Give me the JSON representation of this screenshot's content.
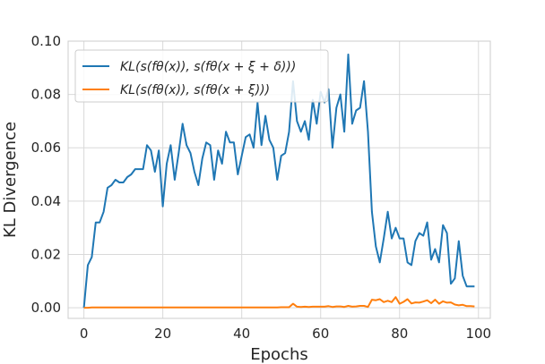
{
  "chart_data": {
    "type": "line",
    "title": "",
    "xlabel": "Epochs",
    "ylabel": "KL Divergence",
    "xlim": [
      -4,
      103
    ],
    "ylim": [
      -0.004,
      0.1
    ],
    "xticks": [
      0,
      20,
      40,
      60,
      80,
      100
    ],
    "xtick_labels": [
      "0",
      "20",
      "40",
      "60",
      "80",
      "100"
    ],
    "yticks": [
      0.0,
      0.02,
      0.04,
      0.06,
      0.08,
      0.1
    ],
    "ytick_labels": [
      "0.00",
      "0.02",
      "0.04",
      "0.06",
      "0.08",
      "0.10"
    ],
    "grid": true,
    "legend_position": "top-left",
    "series": [
      {
        "name": "KL(s(fθ(x)), s(fθ(x + ξ + δ)))",
        "color": "#1f77b4",
        "x": [
          0,
          1,
          2,
          3,
          4,
          5,
          6,
          7,
          8,
          9,
          10,
          11,
          12,
          13,
          14,
          15,
          16,
          17,
          18,
          19,
          20,
          21,
          22,
          23,
          24,
          25,
          26,
          27,
          28,
          29,
          30,
          31,
          32,
          33,
          34,
          35,
          36,
          37,
          38,
          39,
          40,
          41,
          42,
          43,
          44,
          45,
          46,
          47,
          48,
          49,
          50,
          51,
          52,
          53,
          54,
          55,
          56,
          57,
          58,
          59,
          60,
          61,
          62,
          63,
          64,
          65,
          66,
          67,
          68,
          69,
          70,
          71,
          72,
          73,
          74,
          75,
          76,
          77,
          78,
          79,
          80,
          81,
          82,
          83,
          84,
          85,
          86,
          87,
          88,
          89,
          90,
          91,
          92,
          93,
          94,
          95,
          96,
          97,
          98,
          99
        ],
        "values": [
          0.0,
          0.016,
          0.019,
          0.032,
          0.032,
          0.036,
          0.045,
          0.046,
          0.048,
          0.047,
          0.047,
          0.049,
          0.05,
          0.052,
          0.052,
          0.052,
          0.061,
          0.059,
          0.051,
          0.059,
          0.038,
          0.054,
          0.061,
          0.048,
          0.058,
          0.069,
          0.061,
          0.058,
          0.051,
          0.046,
          0.056,
          0.062,
          0.061,
          0.048,
          0.059,
          0.054,
          0.066,
          0.062,
          0.062,
          0.05,
          0.057,
          0.064,
          0.065,
          0.06,
          0.077,
          0.061,
          0.072,
          0.063,
          0.06,
          0.048,
          0.057,
          0.058,
          0.066,
          0.085,
          0.07,
          0.066,
          0.07,
          0.063,
          0.078,
          0.069,
          0.081,
          0.077,
          0.082,
          0.06,
          0.075,
          0.08,
          0.066,
          0.095,
          0.069,
          0.074,
          0.075,
          0.085,
          0.066,
          0.036,
          0.023,
          0.017,
          0.026,
          0.036,
          0.026,
          0.03,
          0.026,
          0.026,
          0.017,
          0.016,
          0.025,
          0.028,
          0.027,
          0.032,
          0.018,
          0.022,
          0.017,
          0.031,
          0.028,
          0.009,
          0.011,
          0.025,
          0.012,
          0.008,
          0.008,
          0.008
        ]
      },
      {
        "name": "KL(s(fθ(x)), s(fθ(x + ξ)))",
        "color": "#ff7f0e",
        "x": [
          0,
          1,
          2,
          3,
          4,
          5,
          6,
          7,
          8,
          9,
          10,
          11,
          12,
          13,
          14,
          15,
          16,
          17,
          18,
          19,
          20,
          21,
          22,
          23,
          24,
          25,
          26,
          27,
          28,
          29,
          30,
          31,
          32,
          33,
          34,
          35,
          36,
          37,
          38,
          39,
          40,
          41,
          42,
          43,
          44,
          45,
          46,
          47,
          48,
          49,
          50,
          51,
          52,
          53,
          54,
          55,
          56,
          57,
          58,
          59,
          60,
          61,
          62,
          63,
          64,
          65,
          66,
          67,
          68,
          69,
          70,
          71,
          72,
          73,
          74,
          75,
          76,
          77,
          78,
          79,
          80,
          81,
          82,
          83,
          84,
          85,
          86,
          87,
          88,
          89,
          90,
          91,
          92,
          93,
          94,
          95,
          96,
          97,
          98,
          99
        ],
        "values": [
          0.0,
          0.0,
          0.0001,
          0.0001,
          0.0001,
          0.0001,
          0.0001,
          0.0001,
          0.0001,
          0.0001,
          0.0001,
          0.0001,
          0.0001,
          0.0001,
          0.0001,
          0.0001,
          0.0001,
          0.0001,
          0.0001,
          0.0001,
          0.0001,
          0.0001,
          0.0001,
          0.0001,
          0.0001,
          0.0001,
          0.0001,
          0.0001,
          0.0001,
          0.0001,
          0.0001,
          0.0001,
          0.0001,
          0.0001,
          0.0001,
          0.0001,
          0.0001,
          0.0001,
          0.0001,
          0.0001,
          0.0001,
          0.0001,
          0.0001,
          0.0001,
          0.0001,
          0.0001,
          0.0001,
          0.0001,
          0.0001,
          0.0001,
          0.0002,
          0.0002,
          0.0002,
          0.0015,
          0.0004,
          0.0003,
          0.0004,
          0.0003,
          0.0004,
          0.0004,
          0.0004,
          0.0004,
          0.0006,
          0.0003,
          0.0005,
          0.0005,
          0.0003,
          0.0007,
          0.0004,
          0.0005,
          0.0007,
          0.0007,
          0.0003,
          0.003,
          0.0028,
          0.0032,
          0.0021,
          0.0026,
          0.0021,
          0.004,
          0.0015,
          0.0022,
          0.0032,
          0.0016,
          0.002,
          0.0019,
          0.0023,
          0.0028,
          0.0017,
          0.003,
          0.0015,
          0.0024,
          0.0019,
          0.002,
          0.0012,
          0.0009,
          0.0011,
          0.0006,
          0.0006,
          0.0005
        ]
      }
    ]
  }
}
